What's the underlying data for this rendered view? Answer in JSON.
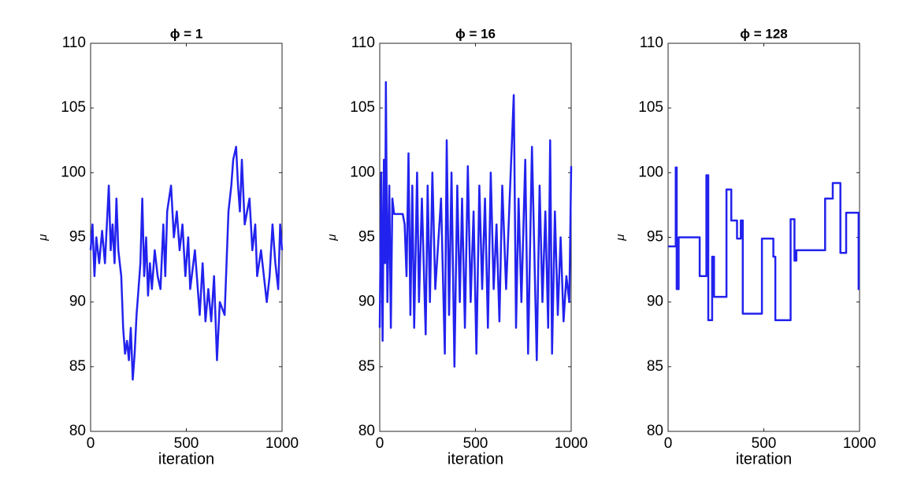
{
  "chart_data": [
    {
      "type": "line",
      "title": "ϕ = 1",
      "xlabel": "iteration",
      "ylabel": "μ",
      "color": "#2222ee",
      "xlim": [
        0,
        1000
      ],
      "ylim": [
        80,
        110
      ],
      "xticks": [
        0,
        500,
        1000
      ],
      "yticks": [
        80,
        85,
        90,
        95,
        100,
        105,
        110
      ],
      "x": [
        0,
        10,
        20,
        30,
        45,
        60,
        75,
        95,
        105,
        115,
        125,
        135,
        145,
        160,
        170,
        180,
        190,
        200,
        210,
        220,
        230,
        240,
        250,
        260,
        270,
        280,
        290,
        300,
        310,
        320,
        335,
        350,
        365,
        380,
        390,
        400,
        410,
        420,
        435,
        450,
        465,
        480,
        495,
        510,
        520,
        545,
        570,
        585,
        600,
        615,
        630,
        645,
        660,
        675,
        700,
        720,
        735,
        745,
        760,
        770,
        780,
        790,
        805,
        830,
        845,
        860,
        870,
        890,
        920,
        935,
        950,
        965,
        980,
        990,
        1000
      ],
      "values": [
        94,
        96,
        92,
        95,
        93,
        95.5,
        93,
        99,
        94,
        96,
        93,
        98,
        94,
        92,
        88,
        86,
        87,
        85.5,
        88,
        84,
        86,
        89,
        91,
        93,
        98,
        92,
        95,
        90.5,
        93,
        91,
        94,
        92,
        91,
        96,
        92,
        97,
        98,
        99,
        95,
        97,
        94,
        96,
        92,
        95,
        91,
        94,
        89,
        93,
        88.5,
        91,
        88.5,
        92,
        85.5,
        90,
        89,
        97,
        99,
        101,
        102,
        99,
        97,
        101,
        96,
        98,
        94,
        96,
        92,
        94,
        90,
        92,
        96,
        93,
        91,
        96,
        94
      ]
    },
    {
      "type": "line",
      "title": "ϕ = 16",
      "xlabel": "iteration",
      "ylabel": "μ",
      "color": "#2222ee",
      "xlim": [
        0,
        1000
      ],
      "ylim": [
        80,
        110
      ],
      "xticks": [
        0,
        500,
        1000
      ],
      "yticks": [
        80,
        85,
        90,
        95,
        100,
        105,
        110
      ],
      "x": [
        0,
        8,
        15,
        22,
        28,
        32,
        40,
        50,
        58,
        66,
        75,
        120,
        130,
        140,
        150,
        160,
        170,
        180,
        195,
        205,
        220,
        240,
        250,
        262,
        275,
        290,
        320,
        340,
        350,
        362,
        375,
        390,
        405,
        418,
        430,
        445,
        460,
        475,
        490,
        505,
        520,
        535,
        550,
        565,
        580,
        595,
        610,
        625,
        640,
        660,
        700,
        712,
        725,
        740,
        760,
        775,
        795,
        820,
        835,
        850,
        865,
        880,
        890,
        900,
        915,
        930,
        945,
        960,
        975,
        990,
        1000
      ],
      "values": [
        88,
        100,
        87,
        101,
        93,
        107,
        90,
        99,
        88,
        98,
        96.8,
        96.8,
        96,
        92,
        101.5,
        89,
        99,
        88,
        100,
        90,
        98,
        87.5,
        99,
        90,
        100,
        91,
        98,
        86,
        102.5,
        89,
        100,
        85,
        99,
        90,
        98,
        88,
        100.5,
        90,
        97,
        86,
        99,
        91,
        98,
        88,
        100,
        91,
        96,
        88.5,
        99,
        91,
        106,
        88,
        98,
        90,
        101,
        86,
        102,
        85.5,
        99,
        90,
        97,
        88,
        102.5,
        86,
        97,
        89,
        95,
        88.5,
        92,
        90,
        100.5
      ]
    },
    {
      "type": "line",
      "title": "ϕ = 128",
      "xlabel": "iteration",
      "ylabel": "μ",
      "color": "#2222ee",
      "xlim": [
        0,
        1000
      ],
      "ylim": [
        80,
        110
      ],
      "xticks": [
        0,
        500,
        1000
      ],
      "yticks": [
        80,
        85,
        90,
        95,
        100,
        105,
        110
      ],
      "x": [
        0,
        40,
        40,
        45,
        45,
        55,
        55,
        165,
        165,
        200,
        200,
        210,
        210,
        230,
        230,
        240,
        240,
        305,
        305,
        330,
        330,
        360,
        360,
        380,
        380,
        390,
        390,
        490,
        490,
        550,
        550,
        560,
        560,
        640,
        640,
        660,
        660,
        670,
        670,
        820,
        820,
        860,
        860,
        900,
        900,
        930,
        930,
        995,
        995,
        1000
      ],
      "values": [
        94.3,
        94.3,
        100.4,
        100.4,
        91,
        91,
        95,
        95,
        92,
        92,
        99.8,
        99.8,
        88.6,
        88.6,
        93.5,
        93.5,
        90.4,
        90.4,
        98.7,
        98.7,
        96.3,
        96.3,
        94.9,
        94.9,
        96.3,
        96.3,
        89.1,
        89.1,
        94.9,
        94.9,
        93.5,
        93.5,
        88.6,
        88.6,
        96.4,
        96.4,
        93.2,
        93.2,
        94,
        94,
        98,
        98,
        99.2,
        99.2,
        93.8,
        93.8,
        96.9,
        96.9,
        91,
        91
      ]
    }
  ]
}
